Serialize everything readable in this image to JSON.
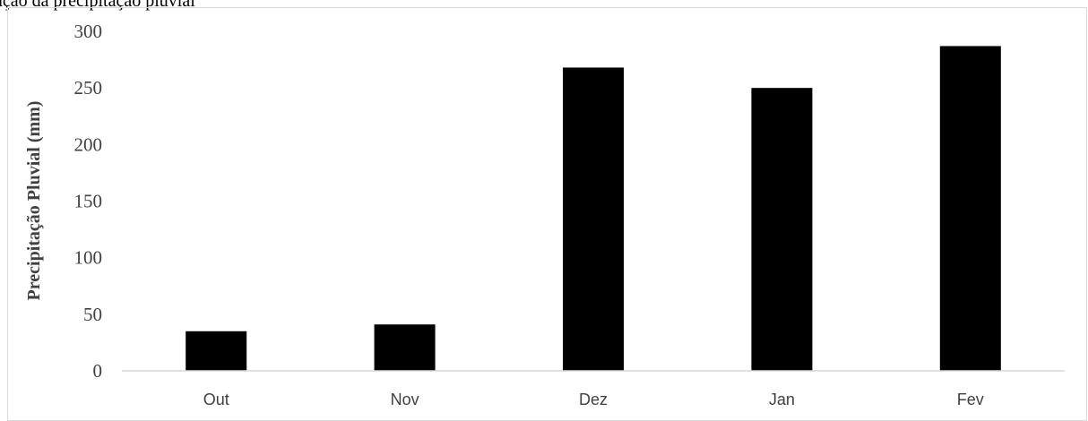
{
  "header": {
    "cut_text": "ação da precipitação pluvial"
  },
  "chart_data": {
    "type": "bar",
    "categories": [
      "Out",
      "Nov",
      "Dez",
      "Jan",
      "Fev"
    ],
    "values": [
      35,
      41,
      268,
      250,
      287
    ],
    "title": "",
    "xlabel": "",
    "ylabel": "Precipitação Pluvial (mm)",
    "ylim": [
      0,
      300
    ],
    "yticks": [
      0,
      50,
      100,
      150,
      200,
      250,
      300
    ],
    "grid": false,
    "legend": "none",
    "bar_color": "#000000"
  }
}
